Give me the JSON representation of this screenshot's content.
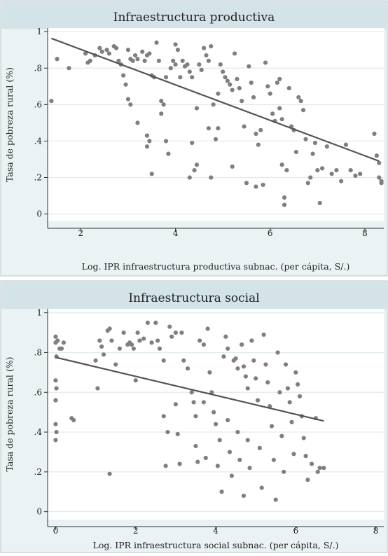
{
  "chart_data": [
    {
      "type": "scatter",
      "title": "Infraestructura productiva",
      "xlabel": "Log. IPR infraestructura productiva subnac. (per cápita, S/.)",
      "ylabel": "Tasa de pobreza rural (%)",
      "xlim": [
        1.3,
        8.4
      ],
      "ylim": [
        -0.04,
        1.02
      ],
      "xticks": [
        2,
        4,
        6,
        8
      ],
      "xtick_labels": [
        "2",
        "4",
        "6",
        "8"
      ],
      "yticks": [
        0,
        0.2,
        0.4,
        0.6,
        0.8,
        1
      ],
      "ytick_labels": [
        "0",
        ".2",
        ".4",
        ".6",
        ".8",
        "1"
      ],
      "grid": true,
      "fit_line": {
        "x": [
          1.38,
          8.3
        ],
        "y": [
          0.963,
          0.29
        ]
      },
      "points": [
        [
          1.38,
          0.62
        ],
        [
          1.5,
          0.85
        ],
        [
          1.75,
          0.8
        ],
        [
          2.1,
          0.88
        ],
        [
          2.15,
          0.83
        ],
        [
          2.2,
          0.84
        ],
        [
          2.3,
          0.87
        ],
        [
          2.4,
          0.91
        ],
        [
          2.45,
          0.89
        ],
        [
          2.55,
          0.9
        ],
        [
          2.6,
          0.88
        ],
        [
          2.7,
          0.92
        ],
        [
          2.75,
          0.91
        ],
        [
          2.8,
          0.84
        ],
        [
          2.85,
          0.82
        ],
        [
          2.9,
          0.76
        ],
        [
          2.95,
          0.71
        ],
        [
          3.0,
          0.9
        ],
        [
          3.05,
          0.85
        ],
        [
          3.1,
          0.84
        ],
        [
          3.15,
          0.87
        ],
        [
          3.2,
          0.85
        ],
        [
          3.0,
          0.63
        ],
        [
          3.05,
          0.6
        ],
        [
          3.2,
          0.5
        ],
        [
          3.3,
          0.89
        ],
        [
          3.35,
          0.84
        ],
        [
          3.4,
          0.87
        ],
        [
          3.45,
          0.88
        ],
        [
          3.5,
          0.76
        ],
        [
          3.4,
          0.43
        ],
        [
          3.4,
          0.37
        ],
        [
          3.45,
          0.4
        ],
        [
          3.5,
          0.22
        ],
        [
          3.55,
          0.75
        ],
        [
          3.6,
          0.94
        ],
        [
          3.65,
          0.84
        ],
        [
          3.7,
          0.62
        ],
        [
          3.7,
          0.55
        ],
        [
          3.75,
          0.6
        ],
        [
          3.8,
          0.75
        ],
        [
          3.8,
          0.4
        ],
        [
          3.85,
          0.33
        ],
        [
          3.9,
          0.8
        ],
        [
          3.95,
          0.84
        ],
        [
          4.0,
          0.93
        ],
        [
          4.0,
          0.82
        ],
        [
          4.05,
          0.9
        ],
        [
          4.1,
          0.75
        ],
        [
          4.15,
          0.84
        ],
        [
          4.2,
          0.81
        ],
        [
          4.25,
          0.82
        ],
        [
          4.3,
          0.78
        ],
        [
          4.35,
          0.75
        ],
        [
          4.3,
          0.2
        ],
        [
          4.35,
          0.39
        ],
        [
          4.4,
          0.24
        ],
        [
          4.45,
          0.27
        ],
        [
          4.45,
          0.58
        ],
        [
          4.5,
          0.82
        ],
        [
          4.55,
          0.79
        ],
        [
          4.6,
          0.91
        ],
        [
          4.65,
          0.87
        ],
        [
          4.7,
          0.84
        ],
        [
          4.75,
          0.92
        ],
        [
          4.7,
          0.47
        ],
        [
          4.75,
          0.2
        ],
        [
          4.8,
          0.6
        ],
        [
          4.85,
          0.41
        ],
        [
          4.9,
          0.66
        ],
        [
          4.9,
          0.47
        ],
        [
          4.95,
          0.82
        ],
        [
          5.0,
          0.78
        ],
        [
          5.05,
          0.75
        ],
        [
          5.1,
          0.73
        ],
        [
          5.15,
          0.71
        ],
        [
          5.2,
          0.68
        ],
        [
          5.2,
          0.26
        ],
        [
          5.25,
          0.88
        ],
        [
          5.3,
          0.74
        ],
        [
          5.35,
          0.69
        ],
        [
          5.4,
          0.62
        ],
        [
          5.45,
          0.48
        ],
        [
          5.5,
          0.17
        ],
        [
          5.55,
          0.81
        ],
        [
          5.6,
          0.72
        ],
        [
          5.65,
          0.64
        ],
        [
          5.7,
          0.44
        ],
        [
          5.7,
          0.15
        ],
        [
          5.75,
          0.38
        ],
        [
          5.8,
          0.46
        ],
        [
          5.85,
          0.16
        ],
        [
          5.9,
          0.83
        ],
        [
          5.95,
          0.7
        ],
        [
          6.0,
          0.66
        ],
        [
          6.05,
          0.55
        ],
        [
          6.1,
          0.51
        ],
        [
          6.15,
          0.72
        ],
        [
          6.2,
          0.74
        ],
        [
          6.2,
          0.58
        ],
        [
          6.25,
          0.52
        ],
        [
          6.25,
          0.27
        ],
        [
          6.3,
          0.09
        ],
        [
          6.3,
          0.05
        ],
        [
          6.35,
          0.24
        ],
        [
          6.4,
          0.69
        ],
        [
          6.45,
          0.48
        ],
        [
          6.5,
          0.46
        ],
        [
          6.55,
          0.34
        ],
        [
          6.6,
          0.64
        ],
        [
          6.65,
          0.62
        ],
        [
          6.7,
          0.57
        ],
        [
          6.75,
          0.41
        ],
        [
          6.8,
          0.17
        ],
        [
          6.85,
          0.2
        ],
        [
          6.9,
          0.33
        ],
        [
          6.95,
          0.39
        ],
        [
          7.0,
          0.24
        ],
        [
          7.05,
          0.06
        ],
        [
          7.1,
          0.25
        ],
        [
          7.2,
          0.37
        ],
        [
          7.3,
          0.22
        ],
        [
          7.4,
          0.24
        ],
        [
          7.5,
          0.18
        ],
        [
          7.6,
          0.38
        ],
        [
          7.7,
          0.24
        ],
        [
          7.8,
          0.21
        ],
        [
          7.9,
          0.22
        ],
        [
          8.2,
          0.44
        ],
        [
          8.25,
          0.32
        ],
        [
          8.3,
          0.2
        ],
        [
          8.35,
          0.18
        ],
        [
          8.3,
          0.28
        ],
        [
          8.35,
          0.17
        ]
      ]
    },
    {
      "type": "scatter",
      "title": "Infraestructura social",
      "xlabel": "Log. IPR infraestructura social subnac. (per cápita, S/.)",
      "ylabel": "Tasa de pobreza rural (%)",
      "xlim": [
        -0.2,
        8.2
      ],
      "ylim": [
        -0.04,
        1.02
      ],
      "xticks": [
        0,
        2,
        4,
        6,
        8
      ],
      "xtick_labels": [
        "0",
        "2",
        "4",
        "6",
        "8"
      ],
      "yticks": [
        0,
        0.2,
        0.4,
        0.6,
        0.8,
        1
      ],
      "ytick_labels": [
        "0",
        ".2",
        ".4",
        ".6",
        ".8",
        "1"
      ],
      "grid": true,
      "fit_line": {
        "x": [
          0.0,
          6.7
        ],
        "y": [
          0.776,
          0.456
        ]
      },
      "points": [
        [
          0.0,
          0.88
        ],
        [
          0.0,
          0.85
        ],
        [
          0.02,
          0.78
        ],
        [
          0.0,
          0.66
        ],
        [
          0.02,
          0.62
        ],
        [
          0.0,
          0.56
        ],
        [
          0.0,
          0.44
        ],
        [
          0.02,
          0.4
        ],
        [
          0.0,
          0.36
        ],
        [
          0.05,
          0.86
        ],
        [
          0.1,
          0.82
        ],
        [
          0.15,
          0.82
        ],
        [
          0.2,
          0.85
        ],
        [
          0.4,
          0.47
        ],
        [
          0.45,
          0.46
        ],
        [
          1.0,
          0.76
        ],
        [
          1.05,
          0.62
        ],
        [
          1.1,
          0.86
        ],
        [
          1.15,
          0.83
        ],
        [
          1.2,
          0.79
        ],
        [
          1.3,
          0.91
        ],
        [
          1.35,
          0.92
        ],
        [
          1.35,
          0.19
        ],
        [
          1.4,
          0.86
        ],
        [
          1.5,
          0.74
        ],
        [
          1.6,
          0.82
        ],
        [
          1.7,
          0.9
        ],
        [
          1.8,
          0.84
        ],
        [
          1.85,
          0.85
        ],
        [
          1.9,
          0.84
        ],
        [
          1.95,
          0.82
        ],
        [
          2.0,
          0.66
        ],
        [
          2.05,
          0.9
        ],
        [
          2.1,
          0.86
        ],
        [
          2.2,
          0.87
        ],
        [
          2.3,
          0.95
        ],
        [
          2.4,
          0.85
        ],
        [
          2.5,
          0.95
        ],
        [
          2.55,
          0.86
        ],
        [
          2.6,
          0.82
        ],
        [
          2.7,
          0.76
        ],
        [
          2.7,
          0.48
        ],
        [
          2.75,
          0.23
        ],
        [
          2.8,
          0.4
        ],
        [
          2.85,
          0.93
        ],
        [
          2.9,
          0.88
        ],
        [
          3.0,
          0.9
        ],
        [
          3.0,
          0.54
        ],
        [
          3.05,
          0.39
        ],
        [
          3.1,
          0.24
        ],
        [
          3.15,
          0.9
        ],
        [
          3.2,
          0.76
        ],
        [
          3.3,
          0.72
        ],
        [
          3.4,
          0.6
        ],
        [
          3.45,
          0.55
        ],
        [
          3.5,
          0.48
        ],
        [
          3.5,
          0.33
        ],
        [
          3.55,
          0.25
        ],
        [
          3.6,
          0.86
        ],
        [
          3.7,
          0.84
        ],
        [
          3.7,
          0.55
        ],
        [
          3.75,
          0.27
        ],
        [
          3.8,
          0.92
        ],
        [
          3.85,
          0.7
        ],
        [
          3.9,
          0.6
        ],
        [
          3.95,
          0.5
        ],
        [
          4.0,
          0.44
        ],
        [
          4.05,
          0.23
        ],
        [
          4.1,
          0.36
        ],
        [
          4.15,
          0.1
        ],
        [
          4.2,
          0.78
        ],
        [
          4.25,
          0.88
        ],
        [
          4.3,
          0.82
        ],
        [
          4.3,
          0.46
        ],
        [
          4.35,
          0.3
        ],
        [
          4.4,
          0.18
        ],
        [
          4.45,
          0.76
        ],
        [
          4.5,
          0.77
        ],
        [
          4.55,
          0.72
        ],
        [
          4.55,
          0.4
        ],
        [
          4.6,
          0.26
        ],
        [
          4.65,
          0.84
        ],
        [
          4.7,
          0.73
        ],
        [
          4.7,
          0.08
        ],
        [
          4.75,
          0.68
        ],
        [
          4.8,
          0.62
        ],
        [
          4.8,
          0.36
        ],
        [
          4.85,
          0.22
        ],
        [
          4.9,
          0.86
        ],
        [
          4.95,
          0.76
        ],
        [
          5.0,
          0.67
        ],
        [
          5.05,
          0.56
        ],
        [
          5.1,
          0.32
        ],
        [
          5.15,
          0.12
        ],
        [
          5.2,
          0.89
        ],
        [
          5.25,
          0.74
        ],
        [
          5.3,
          0.65
        ],
        [
          5.35,
          0.53
        ],
        [
          5.4,
          0.43
        ],
        [
          5.45,
          0.26
        ],
        [
          5.5,
          0.06
        ],
        [
          5.55,
          0.8
        ],
        [
          5.6,
          0.6
        ],
        [
          5.65,
          0.38
        ],
        [
          5.7,
          0.2
        ],
        [
          5.75,
          0.74
        ],
        [
          5.8,
          0.62
        ],
        [
          5.85,
          0.55
        ],
        [
          5.9,
          0.45
        ],
        [
          5.95,
          0.29
        ],
        [
          6.0,
          0.7
        ],
        [
          6.05,
          0.64
        ],
        [
          6.1,
          0.58
        ],
        [
          6.15,
          0.48
        ],
        [
          6.2,
          0.37
        ],
        [
          6.25,
          0.28
        ],
        [
          6.3,
          0.16
        ],
        [
          6.4,
          0.24
        ],
        [
          6.5,
          0.47
        ],
        [
          6.55,
          0.2
        ],
        [
          6.6,
          0.22
        ],
        [
          6.7,
          0.22
        ]
      ]
    }
  ]
}
